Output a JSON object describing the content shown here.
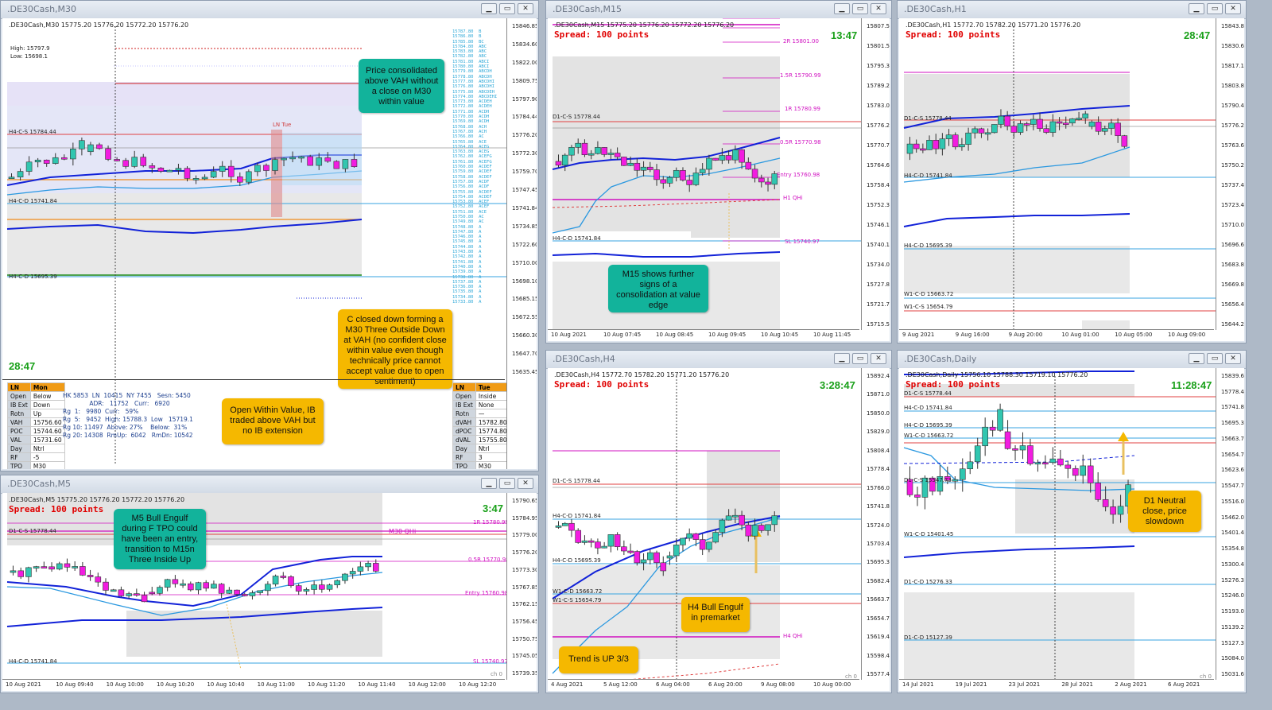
{
  "windows": {
    "m30": {
      "title": ".DE30Cash,M30",
      "symbol_line": ".DE30Cash,M30  15775.20 15776.20 15772.20 15776.20",
      "high": "High: 15797.9",
      "low": "Low: 15698.1",
      "timer": "28:47",
      "prices": [
        "15846.85",
        "15834.60",
        "15822.00",
        "15809.75",
        "15797.90",
        "15784.44",
        "15776.20",
        "15772.30",
        "15759.70",
        "15747.45",
        "15741.84",
        "15734.85",
        "15722.60",
        "15710.00",
        "15698.10",
        "15685.15",
        "15672.55",
        "15660.30",
        "15647.70",
        "15635.45"
      ],
      "levels": [
        "H4-C-S 15784.44",
        "H4-C-D 15741.84",
        "H4-C-D 15695.39"
      ],
      "ln_tue": "LN Tue",
      "tpo_column": "15787.80  B\n15786.80  B\n15785.80  BC\n15784.80  ABC\n15783.80  ABC\n15782.80  ABC\n15781.80  ABCI\n15780.80  ABCI\n15779.80  ABCDH\n15778.80  ABCDH\n15777.80  ABCDHI\n15776.80  ABCDHI\n15775.80  ABCDEH\n15774.80  ABCDEHI\n15773.80  ACDEH\n15772.80  ACDEH\n15771.80  ACDH\n15770.80  ACDH\n15769.80  ACDH\n15768.80  ACH\n15767.80  ACH\n15766.80  AC\n15765.80  ACE\n15764.80  ACEG\n15763.80  ACEG\n15762.80  ACEFG\n15761.80  ACEFG\n15760.80  ACDEF\n15759.80  ACDEF\n15758.80  ACDEF\n15757.80  ACDF\n15756.80  ACDF\n15755.80  ACDEF\n15754.80  ACDEF\n15753.80  ACEF\n15752.80  ACEF\n15751.80  ACE\n15750.80  AC\n15749.80  AC\n15748.80  A\n15747.80  A\n15746.80  A\n15745.80  A\n15744.80  A\n15743.80  A\n15742.80  A\n15741.80  A\n15740.80  A\n15739.80  A\n15738.80  A\n15737.80  A\n15736.80  A\n15735.80  A\n15734.80  A\n15733.80  A",
      "table_left": {
        "header": [
          "LN",
          "Mon"
        ],
        "rows": [
          [
            "Open",
            "Below"
          ],
          [
            "IB Ext",
            "Down"
          ],
          [
            "Rotn",
            "Up"
          ],
          [
            "VAH",
            "15756.60"
          ],
          [
            "POC",
            "15744.60"
          ],
          [
            "VAL",
            "15731.60"
          ],
          [
            "Day",
            "Ntrl"
          ],
          [
            "RF",
            "-5"
          ],
          [
            "TPO",
            "M30"
          ]
        ]
      },
      "table_right": {
        "header": [
          "LN",
          "Tue"
        ],
        "rows": [
          [
            "Open",
            "Inside"
          ],
          [
            "IB Ext",
            "None"
          ],
          [
            "Rotn",
            "—"
          ],
          [
            "dVAH",
            "15782.80"
          ],
          [
            "dPOC",
            "15774.80"
          ],
          [
            "dVAL",
            "15755.80"
          ],
          [
            "Day",
            "Ntrl"
          ],
          [
            "RF",
            "3"
          ],
          [
            "TPO",
            "M30"
          ]
        ]
      },
      "stats_text": "HK 5853  LN  10415  NY 7455   Sesn: 5450\n              ADR:   11752   Curr:   6920\nRg  1:   9980  Curr:   59%\nRg  5:   9452  High: 15788.3  Low   15719.1\nRg 10: 11497  Above: 27%    Below:  31%\nRg 20: 14308  RmUp:  6042   RmDn: 10542",
      "notes": {
        "n1": "Price consolidated above VAH without a close on M30 within value",
        "n2": "C closed down forming a M30 Three Outside Down at VAH (no confident close within value even though technically price cannot accept value due to open sentiment)",
        "n3": "Open Within Value, IB traded above VAH but no IB extension"
      }
    },
    "m15": {
      "title": ".DE30Cash,M15",
      "symbol_line": ".DE30Cash,M15  15775.20 15776.20 15772.20 15776.20",
      "spread": "Spread: 100 points",
      "timer": "13:47",
      "prices": [
        "15807.55",
        "15801.50",
        "15795.35",
        "15789.20",
        "15783.05",
        "15776.20",
        "15770.75",
        "15764.60",
        "15758.45",
        "15752.30",
        "15746.15",
        "15740.10",
        "15734.00",
        "15727.85",
        "15721.70",
        "15715.55"
      ],
      "levels": [
        "2R 15801.00",
        "1.5R 15790.99",
        "1R 15780.99",
        "0.5R 15770.98",
        "Entry 15760.98",
        "H1 QHi",
        "SL 15740.97"
      ],
      "side_labels": [
        "D1-C-S 15778.44",
        "H4-C-D 15741.84"
      ],
      "xticks": [
        "10 Aug 2021",
        "10 Aug 07:45",
        "10 Aug 08:45",
        "10 Aug 09:45",
        "10 Aug 10:45",
        "10 Aug 11:45"
      ],
      "note": "M15 shows further signs of a consolidation at value edge"
    },
    "h1": {
      "title": ".DE30Cash,H1",
      "symbol_line": ".DE30Cash,H1  15772.70 15782.20 15771.20 15776.20",
      "spread": "Spread: 100 points",
      "timer": "28:47",
      "prices": [
        "15843.80",
        "15830.65",
        "15817.10",
        "15803.80",
        "15790.40",
        "15776.20",
        "15763.60",
        "15750.20",
        "15737.40",
        "15723.40",
        "15710.00",
        "15696.60",
        "15683.80",
        "15669.80",
        "15656.40",
        "15644.20"
      ],
      "side_labels": [
        "D1-C-S 15778.44",
        "H4-C-D 15741.84",
        "H4-C-D 15695.39",
        "W1-C-D 15663.72",
        "W1-C-S 15654.79"
      ],
      "xticks": [
        "9 Aug 2021",
        "9 Aug 16:00",
        "9 Aug 20:00",
        "10 Aug 01:00",
        "10 Aug 05:00",
        "10 Aug 09:00"
      ]
    },
    "m5": {
      "title": ".DE30Cash,M5",
      "symbol_line": ".DE30Cash,M5  15775.20 15776.20 15772.20 15776.20",
      "spread": "Spread: 100 points",
      "timer": "3:47",
      "prices": [
        "15790.65",
        "15784.95",
        "15779.00",
        "15776.20",
        "15773.30",
        "15767.85",
        "15762.15",
        "15756.45",
        "15750.75",
        "15745.05",
        "15739.35"
      ],
      "levels": [
        "1R 15780.99",
        "M30 QHi",
        "0.5R 15770.98",
        "Entry 15760.98",
        "SL 15740.97"
      ],
      "side_labels": [
        "D1-C-S 15778.44",
        "H4-C-D 15741.84"
      ],
      "xticks": [
        "10 Aug 2021",
        "10 Aug 09:40",
        "10 Aug 10:00",
        "10 Aug 10:20",
        "10 Aug 10:40",
        "10 Aug 11:00",
        "10 Aug 11:20",
        "10 Aug 11:40",
        "10 Aug 12:00",
        "10 Aug 12:20"
      ],
      "note": "M5 Bull Engulf during F TPO could have been an entry, transition to M15n Three Inside Up",
      "ch0": "ch 0"
    },
    "h4": {
      "title": ".DE30Cash,H4",
      "symbol_line": ".DE30Cash,H4  15772.70 15782.20 15771.20 15776.20",
      "spread": "Spread: 100 points",
      "timer": "3:28:47",
      "prices": [
        "15892.40",
        "15871.00",
        "15850.00",
        "15829.00",
        "15808.40",
        "15778.44",
        "15766.00",
        "15741.84",
        "15724.00",
        "15703.40",
        "15695.39",
        "15682.40",
        "15663.72",
        "15654.79",
        "15619.40",
        "15598.40",
        "15577.40"
      ],
      "side_labels": [
        "D1-C-S 15778.44",
        "H4-C-D 15741.84",
        "H4-C-D 15695.39",
        "W1-C-D 15663.72",
        "W1-C-S 15654.79"
      ],
      "levels": [
        "H4 QHi"
      ],
      "xticks": [
        "4 Aug 2021",
        "5 Aug 12:00",
        "6 Aug 04:00",
        "6 Aug 20:00",
        "9 Aug 08:00",
        "10 Aug 00:00"
      ],
      "note1": "H4 Bull Engulf in premarket",
      "note2": "Trend is UP 3/3",
      "ch0": "ch 0"
    },
    "daily": {
      "title": ".DE30Cash,Daily",
      "symbol_line": ".DE30Cash,Daily  15756.10 15788.30 15719.10 15776.20",
      "spread": "Spread: 100 points",
      "timer": "11:28:47",
      "prices": [
        "15839.60",
        "15778.44",
        "15741.84",
        "15695.39",
        "15663.72",
        "15654.79",
        "15623.60",
        "15547.73",
        "15516.00",
        "15462.00",
        "15401.45",
        "15354.80",
        "15300.40",
        "15276.33",
        "15246.00",
        "15193.00",
        "15139.20",
        "15127.39",
        "15084.00",
        "15031.60"
      ],
      "side_labels": [
        "D1-C-S 15778.44",
        "H4-C-D 15741.84",
        "H4-C-D 15695.39",
        "W1-C-D 15663.72",
        "D1-C-S 15547.73",
        "W1-C-D 15401.45",
        "D1-C-D 15276.33",
        "D1-C-D 15127.39"
      ],
      "xticks": [
        "14 Jul 2021",
        "19 Jul 2021",
        "23 Jul 2021",
        "28 Jul 2021",
        "2 Aug 2021",
        "6 Aug 2021"
      ],
      "note": "D1 Neutral close, price slowdown",
      "ch0": "ch 0"
    }
  },
  "colors": {
    "bull": "#31c6b0",
    "bear": "#f21ce0",
    "accent_red": "#e00000",
    "timer_green": "#19a019",
    "note_teal": "#12b39b",
    "note_gold": "#f5b800"
  }
}
